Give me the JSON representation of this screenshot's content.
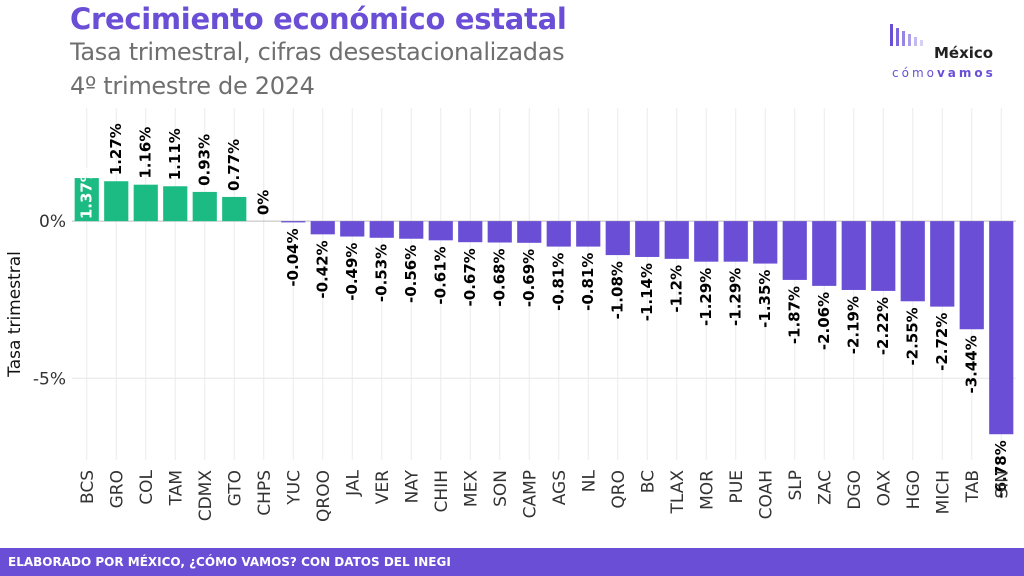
{
  "header": {
    "title": "Crecimiento económico estatal",
    "subtitle": "Tasa trimestral, cifras desestacionalizadas",
    "subtitle2": "4º trimestre de 2024"
  },
  "logo": {
    "word": "México",
    "sub_light": "cómo",
    "sub_bold": "vamos"
  },
  "footer": {
    "text": "ELABORADO POR MÉXICO, ¿CÓMO VAMOS? CON DATOS DEL INEGI"
  },
  "colors": {
    "positive": "#1dbb84",
    "negative": "#6a4fd6",
    "accent": "#6a4fd6"
  },
  "chart_data": {
    "type": "bar",
    "ylabel": "Tasa trimestral",
    "ylim": [
      -7.6,
      3.6
    ],
    "yticks": [
      0,
      -5
    ],
    "ytick_labels": [
      "0%",
      "-5%"
    ],
    "grid": true,
    "categories": [
      "BCS",
      "GRO",
      "COL",
      "TAM",
      "CDMX",
      "GTO",
      "CHPS",
      "YUC",
      "QROO",
      "JAL",
      "VER",
      "NAY",
      "CHIH",
      "MEX",
      "SON",
      "CAMP",
      "AGS",
      "NL",
      "QRO",
      "BC",
      "TLAX",
      "MOR",
      "PUE",
      "COAH",
      "SLP",
      "ZAC",
      "DGO",
      "OAX",
      "HGO",
      "MICH",
      "TAB",
      "SIN"
    ],
    "values": [
      1.37,
      1.27,
      1.16,
      1.11,
      0.93,
      0.77,
      0,
      -0.04,
      -0.42,
      -0.49,
      -0.53,
      -0.56,
      -0.61,
      -0.67,
      -0.68,
      -0.69,
      -0.81,
      -0.81,
      -1.08,
      -1.14,
      -1.2,
      -1.29,
      -1.29,
      -1.35,
      -1.87,
      -2.06,
      -2.19,
      -2.22,
      -2.55,
      -2.72,
      -3.44,
      -6.78
    ],
    "labels": [
      "1.37%",
      "1.27%",
      "1.16%",
      "1.11%",
      "0.93%",
      "0.77%",
      "0%",
      "-0.04%",
      "-0.42%",
      "-0.49%",
      "-0.53%",
      "-0.56%",
      "-0.61%",
      "-0.67%",
      "-0.68%",
      "-0.69%",
      "-0.81%",
      "-0.81%",
      "-1.08%",
      "-1.14%",
      "-1.2%",
      "-1.29%",
      "-1.29%",
      "-1.35%",
      "-1.87%",
      "-2.06%",
      "-2.19%",
      "-2.22%",
      "-2.55%",
      "-2.72%",
      "-3.44%",
      "-6.78%"
    ]
  }
}
